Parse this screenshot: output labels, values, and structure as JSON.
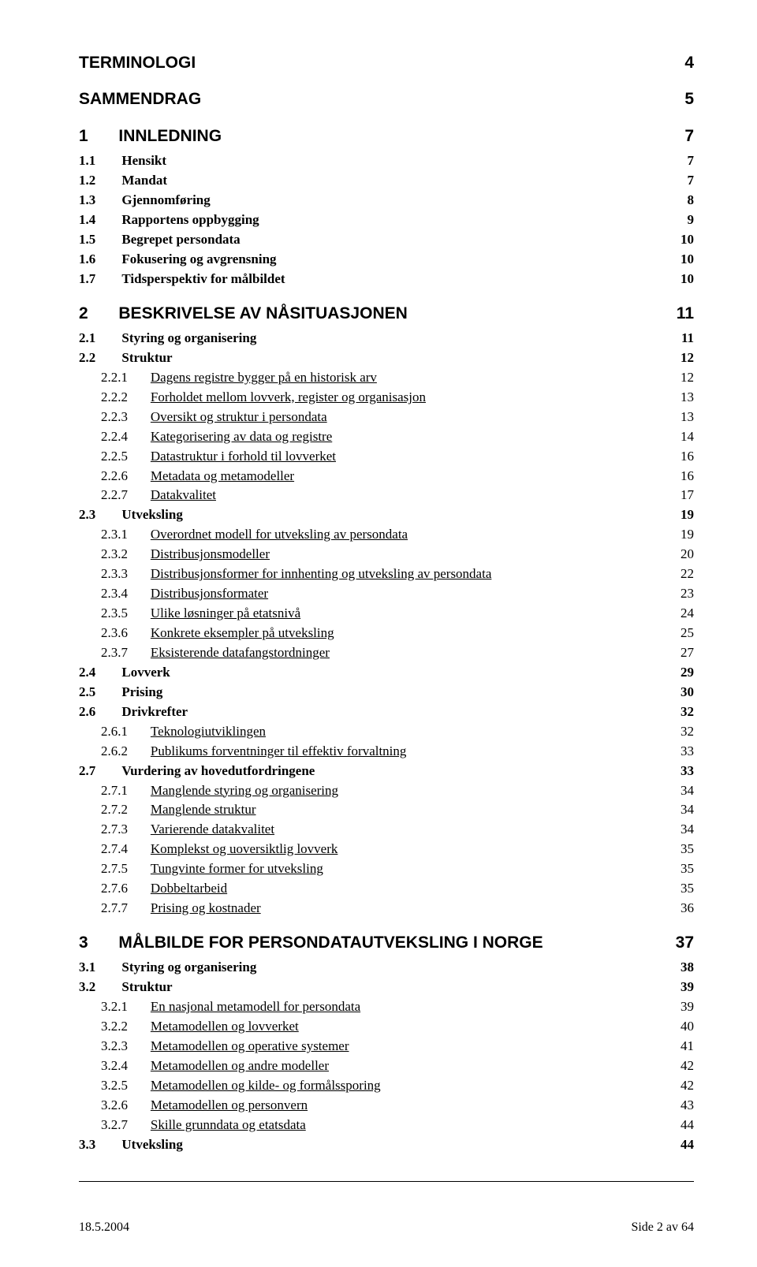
{
  "toc": [
    {
      "level": 0,
      "num": "",
      "label": "TERMINOLOGI",
      "page": "4",
      "nonum": true
    },
    {
      "level": 0,
      "num": "",
      "label": "SAMMENDRAG",
      "page": "5",
      "nonum": true
    },
    {
      "level": 0,
      "num": "1",
      "label": "INNLEDNING",
      "page": "7"
    },
    {
      "level": 1,
      "num": "1.1",
      "label": "Hensikt",
      "page": "7"
    },
    {
      "level": 1,
      "num": "1.2",
      "label": "Mandat",
      "page": "7"
    },
    {
      "level": 1,
      "num": "1.3",
      "label": "Gjennomføring",
      "page": "8"
    },
    {
      "level": 1,
      "num": "1.4",
      "label": "Rapportens oppbygging",
      "page": "9"
    },
    {
      "level": 1,
      "num": "1.5",
      "label": "Begrepet persondata",
      "page": "10"
    },
    {
      "level": 1,
      "num": "1.6",
      "label": "Fokusering og avgrensning",
      "page": "10"
    },
    {
      "level": 1,
      "num": "1.7",
      "label": "Tidsperspektiv for målbildet",
      "page": "10"
    },
    {
      "level": 0,
      "num": "2",
      "label": "BESKRIVELSE AV NÅSITUASJONEN",
      "page": "11"
    },
    {
      "level": 1,
      "num": "2.1",
      "label": "Styring og organisering",
      "page": "11"
    },
    {
      "level": 1,
      "num": "2.2",
      "label": "Struktur",
      "page": "12"
    },
    {
      "level": 2,
      "num": "2.2.1",
      "label": "Dagens registre bygger på en historisk arv",
      "page": "12"
    },
    {
      "level": 2,
      "num": "2.2.2",
      "label": "Forholdet mellom lovverk, register og organisasjon",
      "page": "13"
    },
    {
      "level": 2,
      "num": "2.2.3",
      "label": "Oversikt og struktur i persondata",
      "page": "13"
    },
    {
      "level": 2,
      "num": "2.2.4",
      "label": "Kategorisering av data og registre",
      "page": "14"
    },
    {
      "level": 2,
      "num": "2.2.5",
      "label": "Datastruktur i forhold til lovverket",
      "page": "16"
    },
    {
      "level": 2,
      "num": "2.2.6",
      "label": "Metadata og metamodeller",
      "page": "16"
    },
    {
      "level": 2,
      "num": "2.2.7",
      "label": "Datakvalitet",
      "page": "17"
    },
    {
      "level": 1,
      "num": "2.3",
      "label": "Utveksling",
      "page": "19"
    },
    {
      "level": 2,
      "num": "2.3.1",
      "label": "Overordnet modell for utveksling av persondata",
      "page": "19"
    },
    {
      "level": 2,
      "num": "2.3.2",
      "label": "Distribusjonsmodeller",
      "page": "20"
    },
    {
      "level": 2,
      "num": "2.3.3",
      "label": "Distribusjonsformer for innhenting og utveksling av persondata",
      "page": "22"
    },
    {
      "level": 2,
      "num": "2.3.4",
      "label": "Distribusjonsformater",
      "page": "23"
    },
    {
      "level": 2,
      "num": "2.3.5",
      "label": "Ulike løsninger på etatsnivå",
      "page": "24"
    },
    {
      "level": 2,
      "num": "2.3.6",
      "label": "Konkrete eksempler på utveksling",
      "page": "25"
    },
    {
      "level": 2,
      "num": "2.3.7",
      "label": "Eksisterende datafangstordninger",
      "page": "27"
    },
    {
      "level": 1,
      "num": "2.4",
      "label": "Lovverk",
      "page": "29"
    },
    {
      "level": 1,
      "num": "2.5",
      "label": "Prising",
      "page": "30"
    },
    {
      "level": 1,
      "num": "2.6",
      "label": "Drivkrefter",
      "page": "32"
    },
    {
      "level": 2,
      "num": "2.6.1",
      "label": "Teknologiutviklingen",
      "page": "32"
    },
    {
      "level": 2,
      "num": "2.6.2",
      "label": "Publikums forventninger til effektiv forvaltning",
      "page": "33"
    },
    {
      "level": 1,
      "num": "2.7",
      "label": "Vurdering av hovedutfordringene",
      "page": "33"
    },
    {
      "level": 2,
      "num": "2.7.1",
      "label": "Manglende styring og organisering",
      "page": "34"
    },
    {
      "level": 2,
      "num": "2.7.2",
      "label": "Manglende struktur",
      "page": "34"
    },
    {
      "level": 2,
      "num": "2.7.3",
      "label": "Varierende datakvalitet",
      "page": "34"
    },
    {
      "level": 2,
      "num": "2.7.4",
      "label": "Komplekst og uoversiktlig lovverk",
      "page": "35"
    },
    {
      "level": 2,
      "num": "2.7.5",
      "label": "Tungvinte former for utveksling",
      "page": "35"
    },
    {
      "level": 2,
      "num": "2.7.6",
      "label": "Dobbeltarbeid",
      "page": "35"
    },
    {
      "level": 2,
      "num": "2.7.7",
      "label": "Prising og kostnader",
      "page": "36"
    },
    {
      "level": 0,
      "num": "3",
      "label": "MÅLBILDE FOR PERSONDATAUTVEKSLING I NORGE",
      "page": "37"
    },
    {
      "level": 1,
      "num": "3.1",
      "label": "Styring og organisering",
      "page": "38"
    },
    {
      "level": 1,
      "num": "3.2",
      "label": "Struktur",
      "page": "39"
    },
    {
      "level": 2,
      "num": "3.2.1",
      "label": "En nasjonal metamodell for persondata",
      "page": "39"
    },
    {
      "level": 2,
      "num": "3.2.2",
      "label": "Metamodellen og lovverket",
      "page": "40"
    },
    {
      "level": 2,
      "num": "3.2.3",
      "label": "Metamodellen og operative systemer",
      "page": "41"
    },
    {
      "level": 2,
      "num": "3.2.4",
      "label": "Metamodellen og andre modeller",
      "page": "42"
    },
    {
      "level": 2,
      "num": "3.2.5",
      "label": "Metamodellen og kilde- og formålssporing",
      "page": "42"
    },
    {
      "level": 2,
      "num": "3.2.6",
      "label": "Metamodellen og personvern",
      "page": "43"
    },
    {
      "level": 2,
      "num": "3.2.7",
      "label": "Skille grunndata og etatsdata",
      "page": "44"
    },
    {
      "level": 1,
      "num": "3.3",
      "label": "Utveksling",
      "page": "44"
    }
  ],
  "footer": {
    "left": "18.5.2004",
    "right": "Side 2 av 64"
  }
}
